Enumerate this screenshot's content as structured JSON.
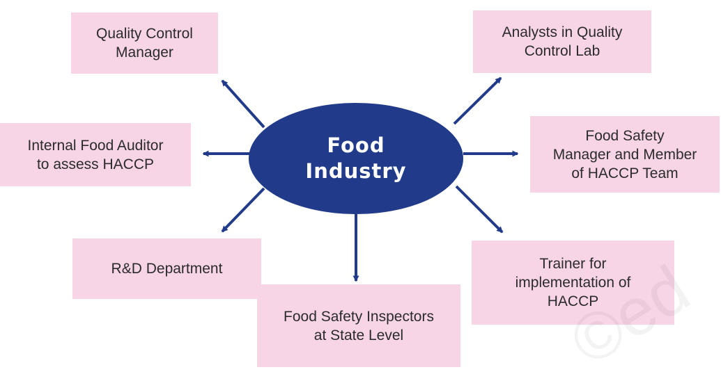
{
  "hub": {
    "label": "Food\nIndustry",
    "color": "#213b8a"
  },
  "nodes": [
    {
      "id": "quality-control-manager",
      "label": "Quality Control\nManager"
    },
    {
      "id": "analysts-quality-control-lab",
      "label": "Analysts in Quality\nControl Lab"
    },
    {
      "id": "internal-food-auditor",
      "label": "Internal Food Auditor\nto assess HACCP"
    },
    {
      "id": "food-safety-manager",
      "label": "Food Safety\nManager and Member\nof HACCP Team"
    },
    {
      "id": "rd-department",
      "label": "R&D Department"
    },
    {
      "id": "trainer-haccp",
      "label": "Trainer for\nimplementation of\nHACCP"
    },
    {
      "id": "food-safety-inspectors",
      "label": "Food Safety Inspectors\nat State Level"
    }
  ],
  "colors": {
    "box_fill": "#f7d4e6",
    "arrow": "#213b8a"
  }
}
